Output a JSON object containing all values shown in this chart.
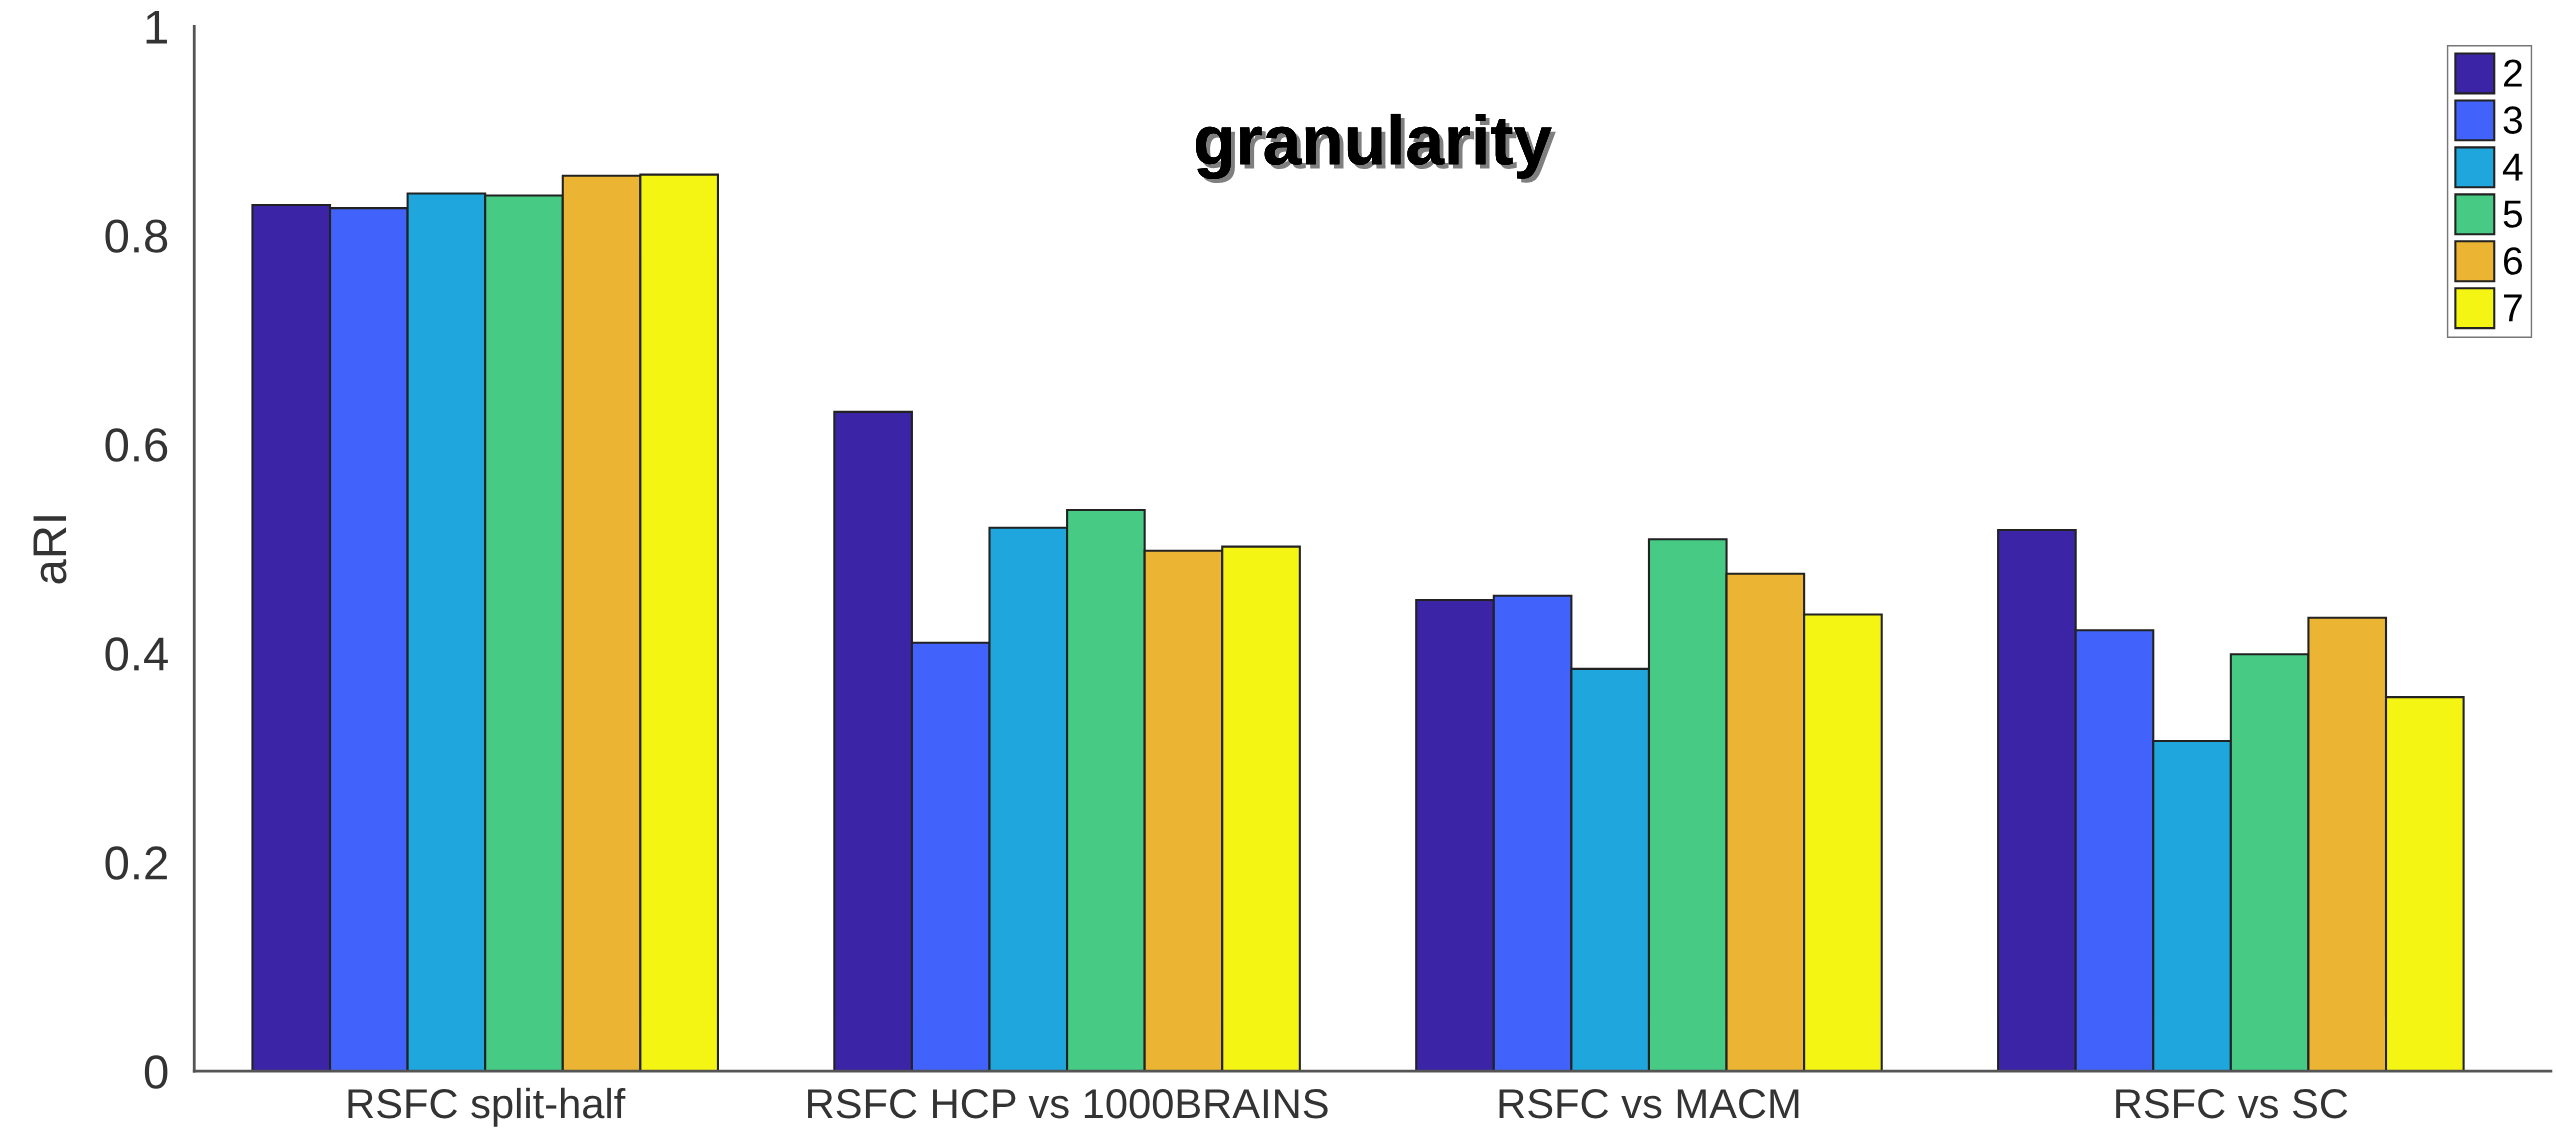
{
  "chart_data": {
    "type": "bar",
    "title": "granularity",
    "ylabel": "aRI",
    "categories": [
      "RSFC split-half",
      "RSFC HCP vs 1000BRAINS",
      "RSFC vs MACM",
      "RSFC vs SC"
    ],
    "series": [
      {
        "name": "2",
        "color": "#3b25a6",
        "values": [
          0.829,
          0.631,
          0.451,
          0.518
        ]
      },
      {
        "name": "3",
        "color": "#4263fb",
        "values": [
          0.826,
          0.41,
          0.455,
          0.422
        ]
      },
      {
        "name": "4",
        "color": "#1fa7dd",
        "values": [
          0.84,
          0.52,
          0.385,
          0.316
        ]
      },
      {
        "name": "5",
        "color": "#46ca84",
        "values": [
          0.838,
          0.537,
          0.509,
          0.399
        ]
      },
      {
        "name": "6",
        "color": "#ebb433",
        "values": [
          0.857,
          0.498,
          0.476,
          0.434
        ]
      },
      {
        "name": "7",
        "color": "#f5f514",
        "values": [
          0.858,
          0.502,
          0.437,
          0.358
        ]
      }
    ],
    "ylim": [
      0,
      1
    ],
    "yticks": [
      0,
      0.2,
      0.4,
      0.6,
      0.8,
      1
    ],
    "legend": "top right",
    "grid": false
  }
}
